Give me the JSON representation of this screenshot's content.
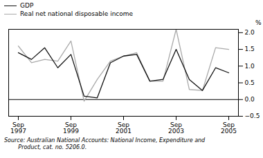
{
  "chart_data": {
    "type": "line",
    "categories": [
      "Sep\n1997",
      null,
      null,
      null,
      "Sep\n1999",
      null,
      null,
      null,
      "Sep\n2001",
      null,
      null,
      null,
      "Sep\n2003",
      null,
      null,
      null,
      "Sep\n2005"
    ],
    "series": [
      {
        "name": "GDP",
        "color": "#111111",
        "values": [
          1.4,
          1.2,
          1.55,
          0.95,
          1.35,
          0.1,
          0.05,
          1.1,
          1.3,
          1.35,
          0.55,
          0.6,
          1.5,
          0.6,
          0.27,
          0.95,
          0.8
        ]
      },
      {
        "name": "Real net national disposable income",
        "color": "#aaaaaa",
        "values": [
          1.6,
          1.1,
          1.2,
          1.15,
          1.75,
          -0.05,
          0.6,
          1.15,
          1.3,
          1.4,
          0.55,
          0.55,
          2.1,
          0.3,
          0.27,
          1.55,
          1.5
        ]
      }
    ],
    "y_label": "%",
    "ylim": [
      -0.5,
      2.1
    ],
    "yticks": [
      {
        "value": -0.5,
        "label": "−0.5"
      },
      {
        "value": 0,
        "label": "0.0"
      },
      0.5,
      {
        "value": 1,
        "label": "1.0"
      },
      1.5,
      {
        "value": 2,
        "label": "2.0"
      }
    ],
    "grid": false,
    "legend": "upper left",
    "caption": "Source: Australian National Accounts: National Income, Expenditure and\n        Product, cat. no. 5206.0."
  }
}
